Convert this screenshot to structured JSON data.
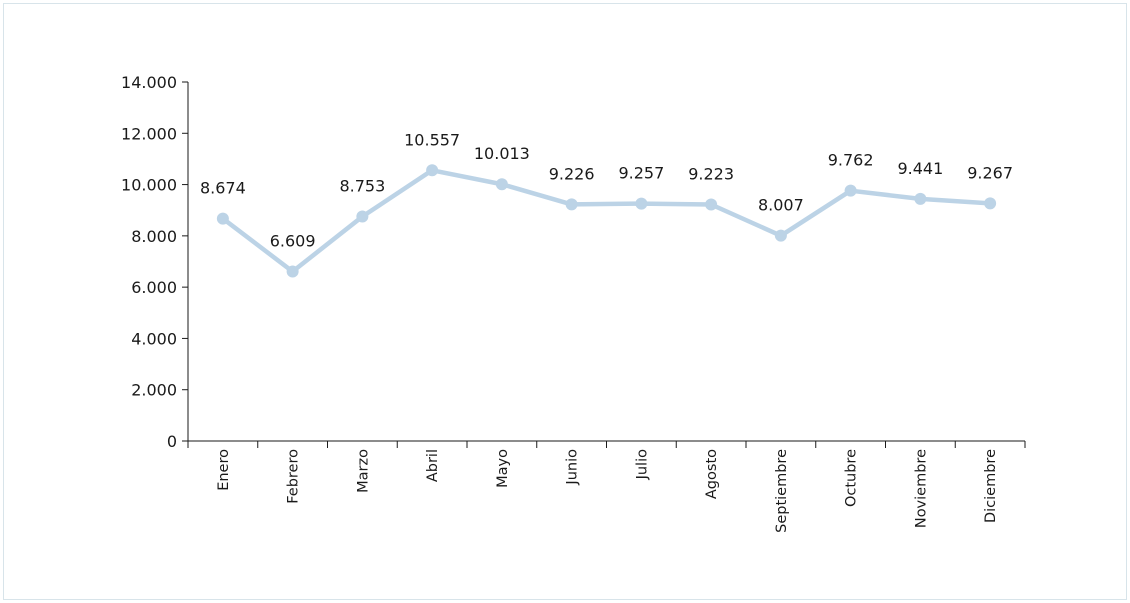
{
  "chart_data": {
    "type": "line",
    "title": "",
    "xlabel": "",
    "ylabel": "",
    "categories": [
      "Enero",
      "Febrero",
      "Marzo",
      "Abril",
      "Mayo",
      "Junio",
      "Julio",
      "Agosto",
      "Septiembre",
      "Octubre",
      "Noviembre",
      "Diciembre"
    ],
    "values": [
      8674,
      6609,
      8753,
      10557,
      10013,
      9226,
      9257,
      9223,
      8007,
      9762,
      9441,
      9267
    ],
    "value_labels": [
      "8.674",
      "6.609",
      "8.753",
      "10.557",
      "10.013",
      "9.226",
      "9.257",
      "9.223",
      "8.007",
      "9.762",
      "9.441",
      "9.267"
    ],
    "yticks": [
      0,
      2000,
      4000,
      6000,
      8000,
      10000,
      12000,
      14000
    ],
    "ytick_labels": [
      "0",
      "2.000",
      "4.000",
      "6.000",
      "8.000",
      "10.000",
      "12.000",
      "14.000"
    ],
    "ylim": [
      0,
      14000
    ],
    "grid": false,
    "legend": "none",
    "line_color": "#bcd3e6",
    "marker_color": "#bcd3e6"
  }
}
